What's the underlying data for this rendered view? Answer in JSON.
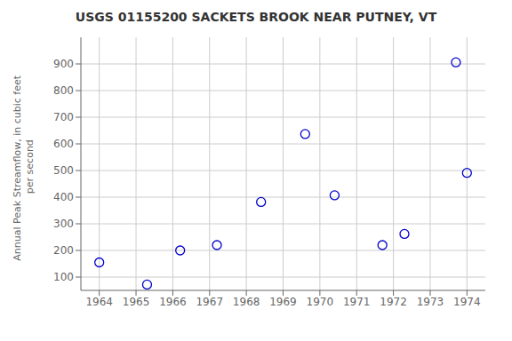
{
  "chart_data": {
    "type": "scatter",
    "title": "USGS 01155200 SACKETS BROOK NEAR PUTNEY, VT",
    "ylabel": "Annual Peak Streamflow, in cubic feet\n per second",
    "x": [
      1964.0,
      1965.3,
      1966.2,
      1967.2,
      1968.4,
      1969.6,
      1970.4,
      1971.7,
      1972.3,
      1973.7,
      1974.0
    ],
    "values": [
      155,
      72,
      200,
      220,
      382,
      637,
      407,
      220,
      262,
      906,
      491
    ],
    "color": "#0000cc",
    "marker": "hollow_circle",
    "xlim": [
      1963.5,
      1974.5
    ],
    "ylim": [
      50,
      1000
    ],
    "xticks": [
      1964,
      1965,
      1966,
      1967,
      1968,
      1969,
      1970,
      1971,
      1972,
      1973,
      1974
    ],
    "yticks": [
      100,
      200,
      300,
      400,
      500,
      600,
      700,
      800,
      900
    ],
    "grid": true
  }
}
